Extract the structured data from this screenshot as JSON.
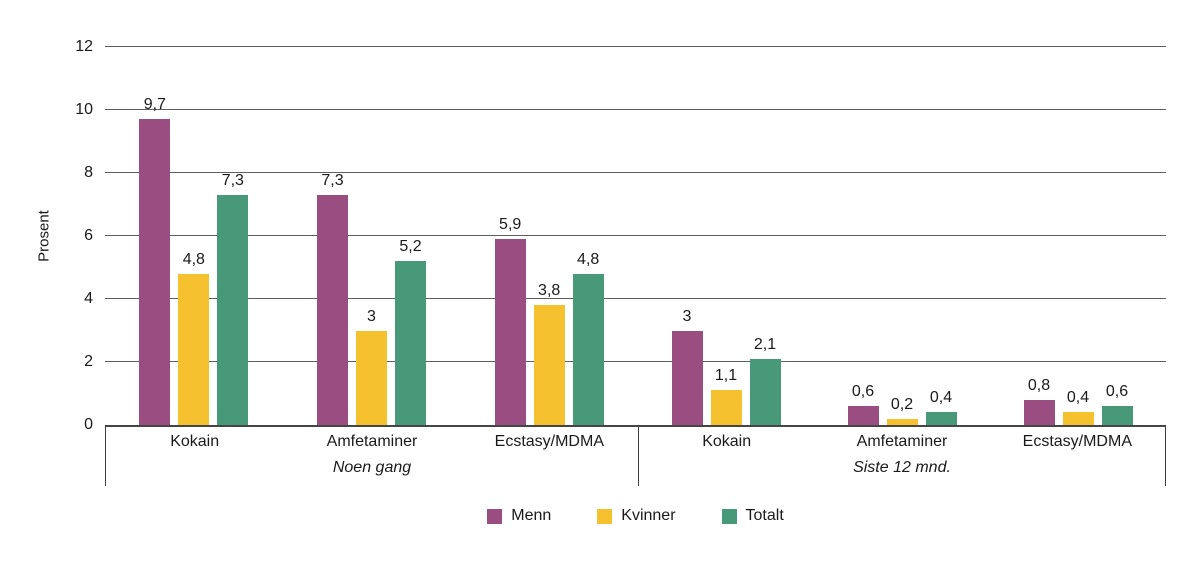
{
  "chart_data": {
    "type": "bar",
    "title": "",
    "ylabel": "Prosent",
    "ylim": [
      0,
      12
    ],
    "yticks": [
      0,
      2,
      4,
      6,
      8,
      10,
      12
    ],
    "grid": true,
    "legend_position": "bottom-center",
    "decimal_separator": ",",
    "legend": [
      {
        "label": "Menn",
        "color": "#9a4d81"
      },
      {
        "label": "Kvinner",
        "color": "#f5c12f"
      },
      {
        "label": "Totalt",
        "color": "#47997a"
      }
    ],
    "groups": [
      {
        "label": "Noen gang",
        "categories": [
          "Kokain",
          "Amfetaminer",
          "Ecstasy/MDMA"
        ],
        "series": [
          {
            "name": "Menn",
            "values": [
              9.7,
              7.3,
              5.9
            ],
            "labels": [
              "9,7",
              "7,3",
              "5,9"
            ]
          },
          {
            "name": "Kvinner",
            "values": [
              4.8,
              3.0,
              3.8
            ],
            "labels": [
              "4,8",
              "3",
              "3,8"
            ]
          },
          {
            "name": "Totalt",
            "values": [
              7.3,
              5.2,
              4.8
            ],
            "labels": [
              "7,3",
              "5,2",
              "4,8"
            ]
          }
        ]
      },
      {
        "label": "Siste 12 mnd.",
        "categories": [
          "Kokain",
          "Amfetaminer",
          "Ecstasy/MDMA"
        ],
        "series": [
          {
            "name": "Menn",
            "values": [
              3.0,
              0.6,
              0.8
            ],
            "labels": [
              "3",
              "0,6",
              "0,8"
            ]
          },
          {
            "name": "Kvinner",
            "values": [
              1.1,
              0.2,
              0.4
            ],
            "labels": [
              "1,1",
              "0,2",
              "0,4"
            ]
          },
          {
            "name": "Totalt",
            "values": [
              2.1,
              0.4,
              0.6
            ],
            "labels": [
              "2,1",
              "0,4",
              "0,6"
            ]
          }
        ]
      }
    ]
  }
}
